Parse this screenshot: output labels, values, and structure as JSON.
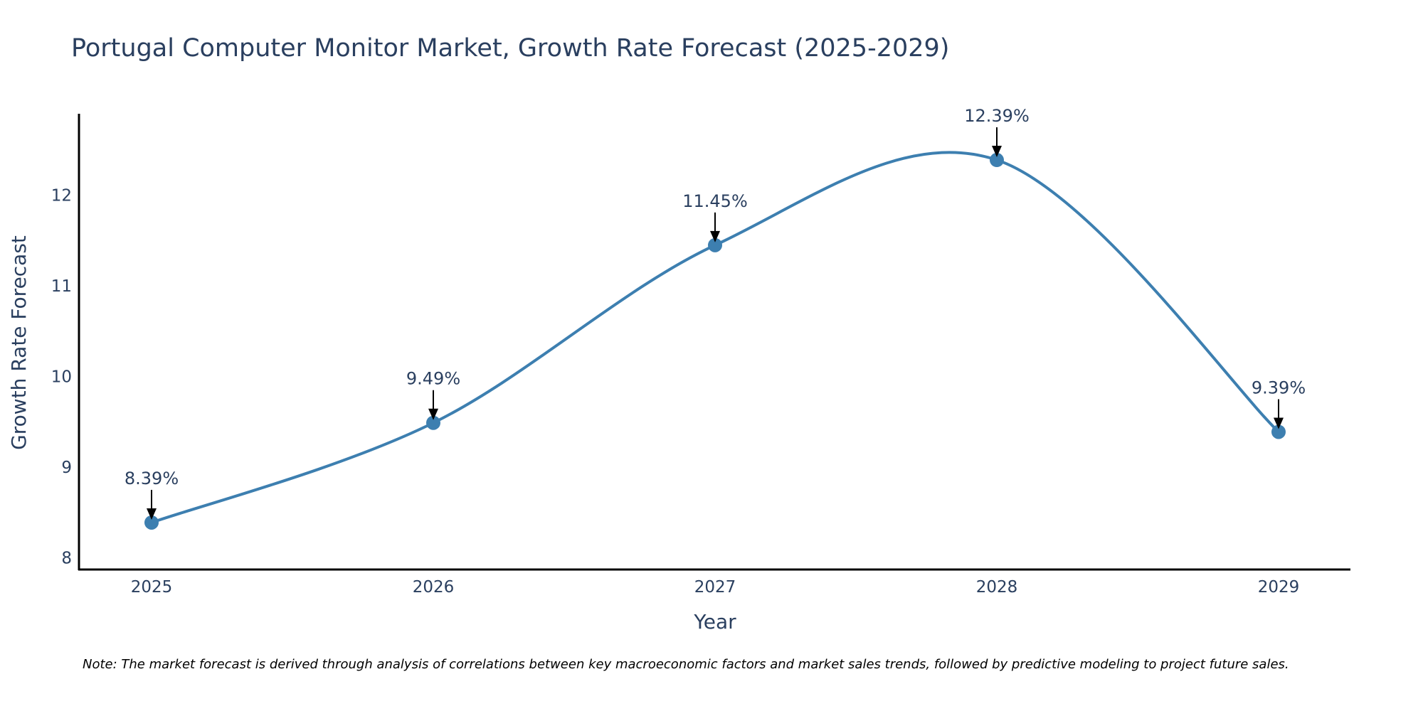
{
  "chart_data": {
    "type": "line",
    "title": "Portugal Computer Monitor Market, Growth Rate Forecast (2025-2029)",
    "xlabel": "Year",
    "ylabel": "Growth Rate Forecast",
    "categories": [
      "2025",
      "2026",
      "2027",
      "2028",
      "2029"
    ],
    "series": [
      {
        "name": "Growth Rate Forecast",
        "values": [
          8.39,
          9.49,
          11.45,
          12.39,
          9.39
        ],
        "labels": [
          "8.39%",
          "9.49%",
          "11.45%",
          "12.39%",
          "9.39%"
        ]
      }
    ],
    "ylim": [
      7.88,
      12.9
    ],
    "yticks": [
      8,
      9,
      10,
      11,
      12
    ],
    "line_shape": "spline",
    "grid": false,
    "legend": "none",
    "colors": {
      "line": "#3d7fb0",
      "marker": "#3d7fb0",
      "arrow": "#000000",
      "axis": "#000000",
      "text": "#2a3f5f"
    },
    "note": "Note: The market forecast is derived through analysis of correlations between key macroeconomic factors and market sales trends, followed by predictive modeling to project future sales."
  }
}
